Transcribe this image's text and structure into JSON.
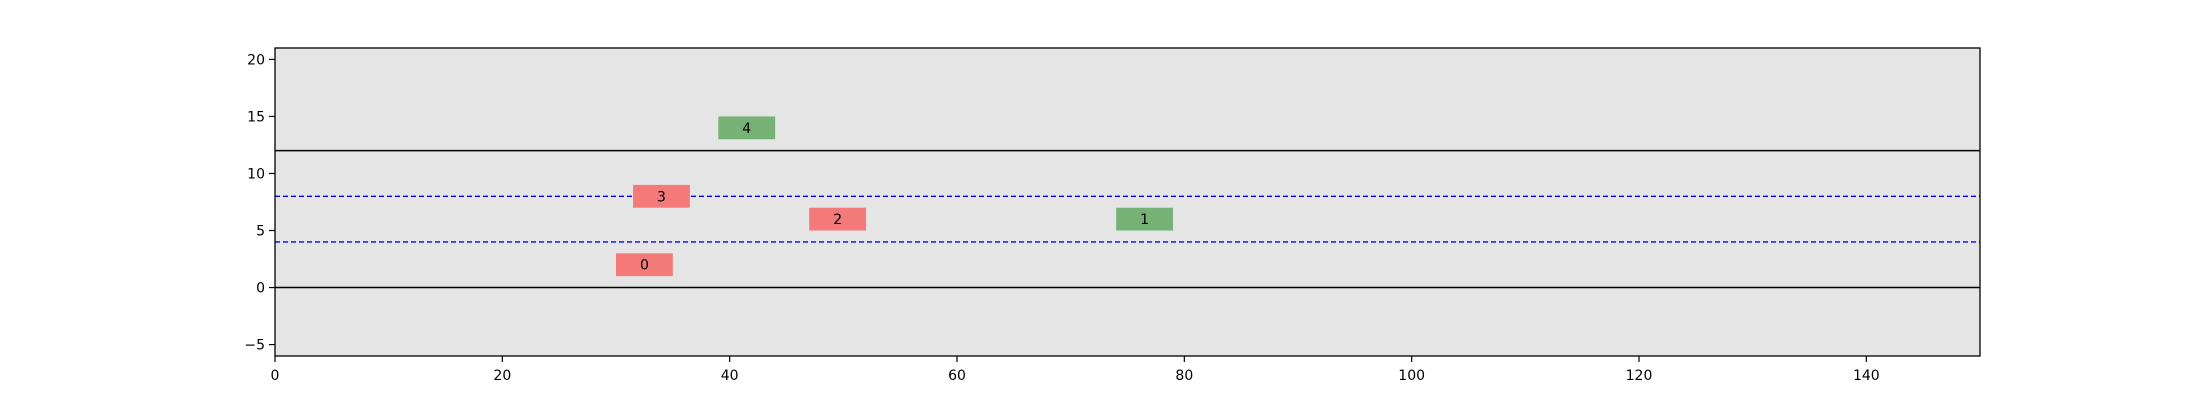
{
  "chart_data": {
    "type": "scatter",
    "title": "",
    "xlabel": "",
    "ylabel": "",
    "xlim": [
      0,
      150
    ],
    "ylim": [
      -6,
      21
    ],
    "xticks": [
      0,
      20,
      40,
      60,
      80,
      100,
      120,
      140
    ],
    "yticks": [
      -5,
      0,
      5,
      10,
      15,
      20
    ],
    "background_color": "#e5e5e5",
    "boundaries": [
      {
        "y": 0,
        "style": "solid",
        "color": "#000000"
      },
      {
        "y": 12,
        "style": "solid",
        "color": "#000000"
      }
    ],
    "lanes": [
      {
        "y": 4,
        "style": "dashed",
        "color": "#0000ff"
      },
      {
        "y": 8,
        "style": "dashed",
        "color": "#0000ff"
      }
    ],
    "vehicles": [
      {
        "label": "0",
        "x": 32.5,
        "y": 2,
        "width": 5,
        "height": 2,
        "color": "#f47a7a"
      },
      {
        "label": "1",
        "x": 76.5,
        "y": 6,
        "width": 5,
        "height": 2,
        "color": "#76b176"
      },
      {
        "label": "2",
        "x": 49.5,
        "y": 6,
        "width": 5,
        "height": 2,
        "color": "#f47a7a"
      },
      {
        "label": "3",
        "x": 34,
        "y": 8,
        "width": 5,
        "height": 2,
        "color": "#f47a7a"
      },
      {
        "label": "4",
        "x": 41.5,
        "y": 14,
        "width": 5,
        "height": 2,
        "color": "#76b176"
      }
    ]
  }
}
